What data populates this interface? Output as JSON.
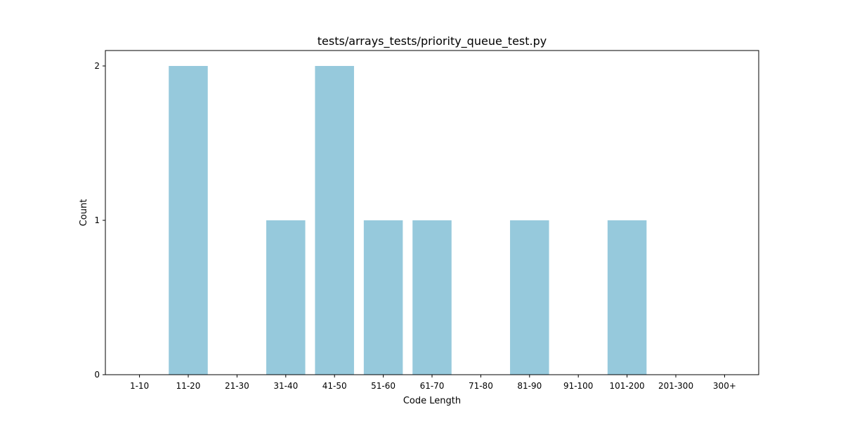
{
  "chart_data": {
    "type": "bar",
    "title": "tests/arrays_tests/priority_queue_test.py",
    "xlabel": "Code Length",
    "ylabel": "Count",
    "categories": [
      "1-10",
      "11-20",
      "21-30",
      "31-40",
      "41-50",
      "51-60",
      "61-70",
      "71-80",
      "81-90",
      "91-100",
      "101-200",
      "201-300",
      "300+"
    ],
    "values": [
      0,
      2,
      0,
      1,
      2,
      1,
      1,
      0,
      1,
      0,
      1,
      0,
      0
    ],
    "yticks": [
      0,
      1,
      2
    ],
    "ylim": [
      0,
      2.1
    ],
    "grid": false,
    "legend": "none",
    "bar_color": "#96c9dc",
    "axis_color": "#000000"
  }
}
